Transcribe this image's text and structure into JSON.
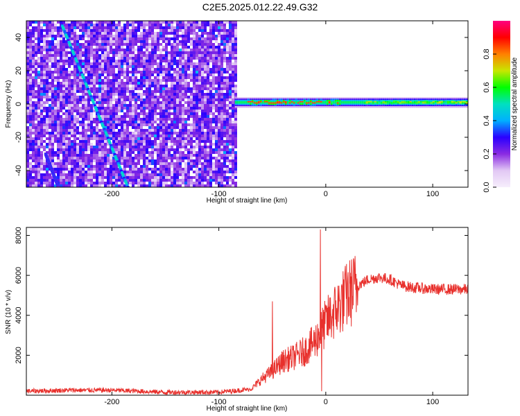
{
  "title": "C2E5.2025.012.22.49.G32",
  "colorbar": {
    "label": "Normalized spectral amplitude",
    "ticks": [
      "0.0",
      "0.2",
      "0.4",
      "0.6",
      "0.8"
    ],
    "stops": [
      "#f6eefc",
      "#e2c8f4",
      "#8a2be2",
      "#2a00ff",
      "#00b0ff",
      "#00e0c0",
      "#00ff00",
      "#c8e600",
      "#ff8000",
      "#ff0000",
      "#ff0080"
    ]
  },
  "chart_data": [
    {
      "type": "heatmap",
      "xlabel": "Height of straight line (km)",
      "ylabel": "Frequency (Hz)",
      "xlim": [
        -280,
        133
      ],
      "ylim": [
        -50,
        50
      ],
      "xticks": [
        -200,
        -100,
        0,
        100
      ],
      "yticks": [
        -40,
        -20,
        0,
        20,
        40
      ],
      "noise_region": {
        "x_range": [
          -280,
          -85
        ],
        "amplitude": "0.1-0.3"
      },
      "diagonal_lines": [
        {
          "from": [
            -247,
            48
          ],
          "to": [
            -185,
            -50
          ],
          "peak_amplitude": 0.5
        },
        {
          "from": [
            -262,
            -30
          ],
          "to": [
            -250,
            -50
          ],
          "peak_amplitude": 0.35
        }
      ],
      "signal_band": {
        "x_range": [
          -85,
          133
        ],
        "center_freq": 1,
        "width_hz": 6,
        "peak_amplitude": 0.95
      }
    },
    {
      "type": "line",
      "xlabel": "Height of straight line (km)",
      "ylabel": "SNR (10 * v/v)",
      "xlim": [
        -280,
        133
      ],
      "ylim": [
        0,
        8400
      ],
      "xticks": [
        -200,
        -100,
        0,
        100
      ],
      "yticks": [
        2000,
        4000,
        6000,
        8000
      ],
      "series": [
        {
          "color": "#e8302c",
          "envelope": [
            [
              -280,
              200
            ],
            [
              -240,
              250
            ],
            [
              -200,
              250
            ],
            [
              -150,
              150
            ],
            [
              -100,
              150
            ],
            [
              -70,
              300
            ],
            [
              -60,
              800
            ],
            [
              -50,
              1200
            ],
            [
              -40,
              1700
            ],
            [
              -30,
              1900
            ],
            [
              -20,
              2200
            ],
            [
              -10,
              2700
            ],
            [
              0,
              3600
            ],
            [
              10,
              4300
            ],
            [
              20,
              5000
            ],
            [
              30,
              5500
            ],
            [
              40,
              5800
            ],
            [
              50,
              5900
            ],
            [
              60,
              5800
            ],
            [
              70,
              5500
            ],
            [
              80,
              5400
            ],
            [
              100,
              5300
            ],
            [
              133,
              5300
            ]
          ],
          "spikes": [
            [
              -50,
              4700
            ],
            [
              -5,
              8300
            ],
            [
              -4,
              200
            ]
          ]
        }
      ]
    }
  ]
}
